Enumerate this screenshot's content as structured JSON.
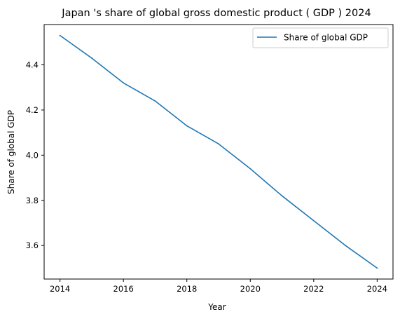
{
  "chart_data": {
    "type": "line",
    "title": "Japan 's share of global gross domestic product ( GDP ) 2024",
    "xlabel": "Year",
    "ylabel": "Share of global GDP",
    "x": [
      2014,
      2015,
      2016,
      2017,
      2018,
      2019,
      2020,
      2021,
      2022,
      2023,
      2024
    ],
    "series": [
      {
        "name": "Share of global GDP",
        "color": "#1f77b4",
        "values": [
          4.53,
          4.43,
          4.32,
          4.24,
          4.13,
          4.05,
          3.94,
          3.82,
          3.71,
          3.6,
          3.5
        ]
      }
    ],
    "xlim": [
      2013.5,
      2024.5
    ],
    "ylim": [
      3.4515,
      4.5785
    ],
    "xticks": [
      2014,
      2016,
      2018,
      2020,
      2022,
      2024
    ],
    "yticks": [
      3.6,
      3.8,
      4.0,
      4.2,
      4.4
    ],
    "ytick_labels": [
      "3.6",
      "3.8",
      "4.0",
      "4.2",
      "4.4"
    ],
    "grid": false,
    "legend": "top-right"
  }
}
